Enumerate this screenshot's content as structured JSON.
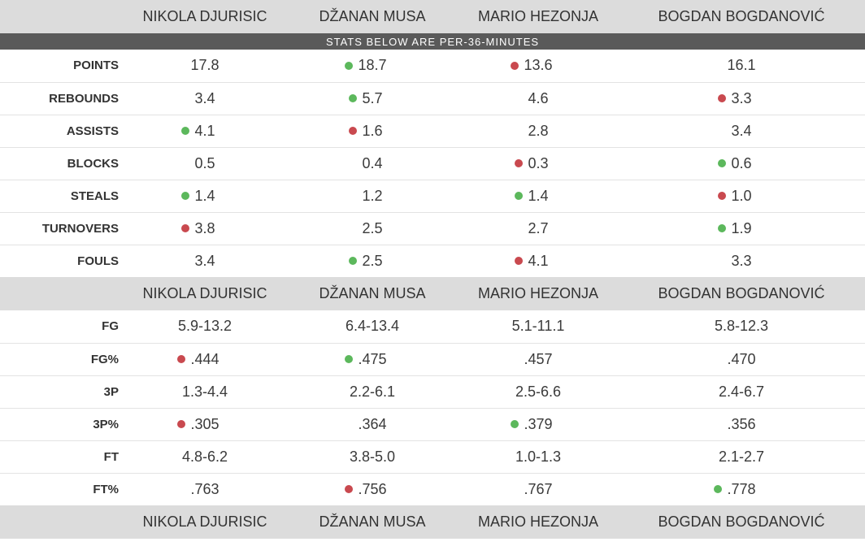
{
  "players": [
    "NIKOLA DJURISIC",
    "DŽANAN MUSA",
    "MARIO HEZONJA",
    "BOGDAN BOGDANOVIĆ"
  ],
  "banner": "STATS BELOW ARE PER-36-MINUTES",
  "indicator_colors": {
    "good": "#5cb85c",
    "bad": "#c9494f"
  },
  "per36_stats": [
    {
      "label": "POINTS",
      "values": [
        "17.8",
        "18.7",
        "13.6",
        "16.1"
      ],
      "marks": [
        "",
        "good",
        "bad",
        ""
      ]
    },
    {
      "label": "REBOUNDS",
      "values": [
        "3.4",
        "5.7",
        "4.6",
        "3.3"
      ],
      "marks": [
        "",
        "good",
        "",
        "bad"
      ]
    },
    {
      "label": "ASSISTS",
      "values": [
        "4.1",
        "1.6",
        "2.8",
        "3.4"
      ],
      "marks": [
        "good",
        "bad",
        "",
        ""
      ]
    },
    {
      "label": "BLOCKS",
      "values": [
        "0.5",
        "0.4",
        "0.3",
        "0.6"
      ],
      "marks": [
        "",
        "",
        "bad",
        "good"
      ]
    },
    {
      "label": "STEALS",
      "values": [
        "1.4",
        "1.2",
        "1.4",
        "1.0"
      ],
      "marks": [
        "good",
        "",
        "good",
        "bad"
      ]
    },
    {
      "label": "TURNOVERS",
      "values": [
        "3.8",
        "2.5",
        "2.7",
        "1.9"
      ],
      "marks": [
        "bad",
        "",
        "",
        "good"
      ]
    },
    {
      "label": "FOULS",
      "values": [
        "3.4",
        "2.5",
        "4.1",
        "3.3"
      ],
      "marks": [
        "",
        "good",
        "bad",
        ""
      ]
    }
  ],
  "shooting_stats": [
    {
      "label": "FG",
      "values": [
        "5.9-13.2",
        "6.4-13.4",
        "5.1-11.1",
        "5.8-12.3"
      ],
      "marks": [
        "",
        "",
        "",
        ""
      ]
    },
    {
      "label": "FG%",
      "values": [
        ".444",
        ".475",
        ".457",
        ".470"
      ],
      "marks": [
        "bad",
        "good",
        "",
        ""
      ]
    },
    {
      "label": "3P",
      "values": [
        "1.3-4.4",
        "2.2-6.1",
        "2.5-6.6",
        "2.4-6.7"
      ],
      "marks": [
        "",
        "",
        "",
        ""
      ]
    },
    {
      "label": "3P%",
      "values": [
        ".305",
        ".364",
        ".379",
        ".356"
      ],
      "marks": [
        "bad",
        "",
        "good",
        ""
      ]
    },
    {
      "label": "FT",
      "values": [
        "4.8-6.2",
        "3.8-5.0",
        "1.0-1.3",
        "2.1-2.7"
      ],
      "marks": [
        "",
        "",
        "",
        ""
      ]
    },
    {
      "label": "FT%",
      "values": [
        ".763",
        ".756",
        ".767",
        ".778"
      ],
      "marks": [
        "",
        "bad",
        "",
        "good"
      ]
    }
  ]
}
